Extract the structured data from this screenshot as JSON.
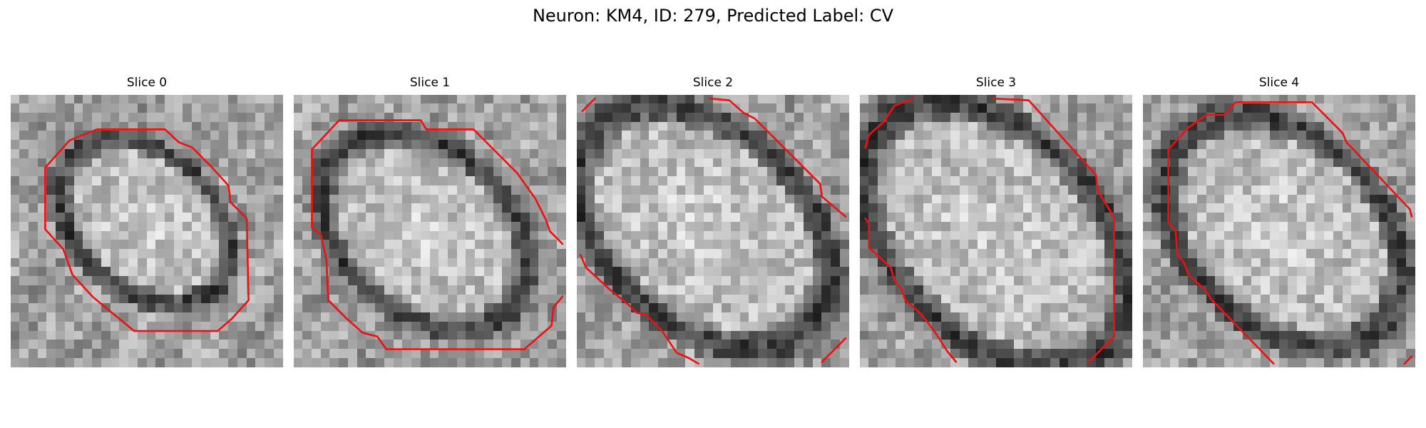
{
  "figure": {
    "title": "Neuron: KM4, ID: 279, Predicted Label: CV"
  },
  "slices": [
    {
      "label": "Slice 0"
    },
    {
      "label": "Slice 1"
    },
    {
      "label": "Slice 2"
    },
    {
      "label": "Slice 3"
    },
    {
      "label": "Slice 4"
    }
  ],
  "colors": {
    "contour": "#ee1111",
    "background": "#ffffff"
  }
}
